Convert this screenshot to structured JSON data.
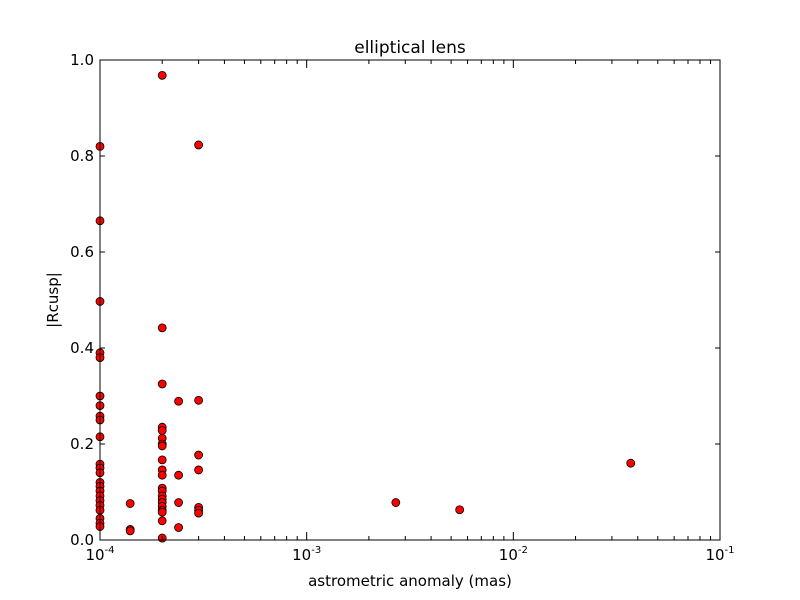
{
  "chart_data": {
    "type": "scatter",
    "title": "elliptical lens",
    "xlabel": "astrometric anomaly (mas)",
    "ylabel": "|Rcusp|",
    "xscale": "log",
    "xlim": [
      0.0001,
      0.1
    ],
    "ylim": [
      0.0,
      1.0
    ],
    "grid": false,
    "legend": "none",
    "marker_color": "#ff0000",
    "marker_edge": "#000000",
    "x_ticks": [
      {
        "base": "10",
        "exp": "-4",
        "value": 0.0001
      },
      {
        "base": "10",
        "exp": "-3",
        "value": 0.001
      },
      {
        "base": "10",
        "exp": "-2",
        "value": 0.01
      },
      {
        "base": "10",
        "exp": "-1",
        "value": 0.1
      }
    ],
    "y_ticks": [
      "0.0",
      "0.2",
      "0.4",
      "0.6",
      "0.8",
      "1.0"
    ],
    "points": [
      [
        0.0001,
        0.82
      ],
      [
        0.0001,
        0.665
      ],
      [
        0.0001,
        0.497
      ],
      [
        0.0001,
        0.39
      ],
      [
        0.0001,
        0.38
      ],
      [
        0.0001,
        0.3
      ],
      [
        0.0001,
        0.28
      ],
      [
        0.0001,
        0.258
      ],
      [
        0.0001,
        0.25
      ],
      [
        0.0001,
        0.215
      ],
      [
        0.0001,
        0.158
      ],
      [
        0.0001,
        0.15
      ],
      [
        0.0001,
        0.14
      ],
      [
        0.0001,
        0.12
      ],
      [
        0.0001,
        0.112
      ],
      [
        0.0001,
        0.102
      ],
      [
        0.0001,
        0.092
      ],
      [
        0.0001,
        0.082
      ],
      [
        0.0001,
        0.072
      ],
      [
        0.0001,
        0.062
      ],
      [
        0.0001,
        0.045
      ],
      [
        0.0001,
        0.035
      ],
      [
        0.0001,
        0.028
      ],
      [
        0.00014,
        0.076
      ],
      [
        0.00014,
        0.022
      ],
      [
        0.00014,
        0.019
      ],
      [
        0.0002,
        0.968
      ],
      [
        0.0002,
        0.442
      ],
      [
        0.0002,
        0.325
      ],
      [
        0.0002,
        0.235
      ],
      [
        0.0002,
        0.228
      ],
      [
        0.0002,
        0.212
      ],
      [
        0.0002,
        0.2
      ],
      [
        0.0002,
        0.196
      ],
      [
        0.0002,
        0.167
      ],
      [
        0.0002,
        0.146
      ],
      [
        0.0002,
        0.135
      ],
      [
        0.0002,
        0.108
      ],
      [
        0.0002,
        0.102
      ],
      [
        0.0002,
        0.092
      ],
      [
        0.0002,
        0.085
      ],
      [
        0.0002,
        0.078
      ],
      [
        0.0002,
        0.07
      ],
      [
        0.0002,
        0.062
      ],
      [
        0.0002,
        0.058
      ],
      [
        0.0002,
        0.04
      ],
      [
        0.0002,
        0.004
      ],
      [
        0.00024,
        0.289
      ],
      [
        0.00024,
        0.135
      ],
      [
        0.00024,
        0.078
      ],
      [
        0.00024,
        0.026
      ],
      [
        0.0003,
        0.823
      ],
      [
        0.0003,
        0.291
      ],
      [
        0.0003,
        0.177
      ],
      [
        0.0003,
        0.146
      ],
      [
        0.0003,
        0.068
      ],
      [
        0.0003,
        0.062
      ],
      [
        0.0003,
        0.056
      ],
      [
        0.0027,
        0.078
      ],
      [
        0.0055,
        0.063
      ],
      [
        0.037,
        0.16
      ]
    ]
  }
}
